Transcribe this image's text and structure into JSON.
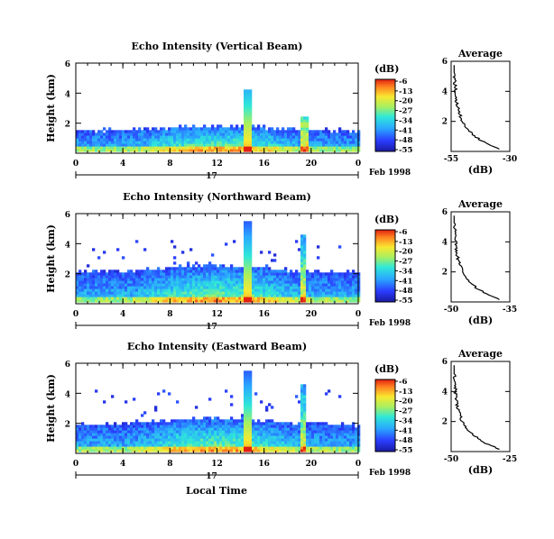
{
  "figure": {
    "xlabel": "Local Time",
    "date_label": "Feb 1998",
    "day_label": "17",
    "colorbar_unit": "(dB)",
    "avg_title": "Average",
    "avg_xlabel": "(dB)"
  },
  "chart_data": [
    {
      "type": "heatmap",
      "title": "Echo Intensity (Vertical Beam)",
      "ylabel": "Height (km)",
      "xticks": [
        "0",
        "4",
        "8",
        "12",
        "16",
        "20",
        "0"
      ],
      "xlim": [
        0,
        24
      ],
      "yticks": [
        "2",
        "4",
        "6"
      ],
      "ylim": [
        0,
        6
      ],
      "colorbar": {
        "ticks": [
          "-6",
          "-13",
          "-20",
          "-27",
          "-34",
          "-41",
          "-48",
          "-55"
        ],
        "range": [
          -55,
          -6
        ]
      },
      "average": {
        "title": "Average",
        "xlabel": "(dB)",
        "xticks": [
          "-55",
          "-30"
        ],
        "xlim": [
          -55,
          -30
        ],
        "yticks": [
          "2",
          "4",
          "6"
        ],
        "ylim": [
          0,
          6
        ]
      }
    },
    {
      "type": "heatmap",
      "title": "Echo Intensity (Northward Beam)",
      "ylabel": "Height (km)",
      "xticks": [
        "0",
        "4",
        "8",
        "12",
        "16",
        "20",
        "0"
      ],
      "xlim": [
        0,
        24
      ],
      "yticks": [
        "2",
        "4",
        "6"
      ],
      "ylim": [
        0,
        6
      ],
      "colorbar": {
        "ticks": [
          "-6",
          "-13",
          "-20",
          "-27",
          "-34",
          "-41",
          "-48",
          "-55"
        ],
        "range": [
          -55,
          -6
        ]
      },
      "average": {
        "title": "Average",
        "xlabel": "(dB)",
        "xticks": [
          "-50",
          "-35"
        ],
        "xlim": [
          -50,
          -35
        ],
        "yticks": [
          "2",
          "4",
          "6"
        ],
        "ylim": [
          0,
          6
        ]
      }
    },
    {
      "type": "heatmap",
      "title": "Echo Intensity (Eastward Beam)",
      "ylabel": "Height (km)",
      "xticks": [
        "0",
        "4",
        "8",
        "12",
        "16",
        "20",
        "0"
      ],
      "xlim": [
        0,
        24
      ],
      "yticks": [
        "2",
        "4",
        "6"
      ],
      "ylim": [
        0,
        6
      ],
      "colorbar": {
        "ticks": [
          "-6",
          "-13",
          "-20",
          "-27",
          "-34",
          "-41",
          "-48",
          "-55"
        ],
        "range": [
          -55,
          -6
        ]
      },
      "average": {
        "title": "Average",
        "xlabel": "(dB)",
        "xticks": [
          "-50",
          "-25"
        ],
        "xlim": [
          -50,
          -25
        ],
        "yticks": [
          "2",
          "4",
          "6"
        ],
        "ylim": [
          0,
          6
        ]
      }
    }
  ]
}
